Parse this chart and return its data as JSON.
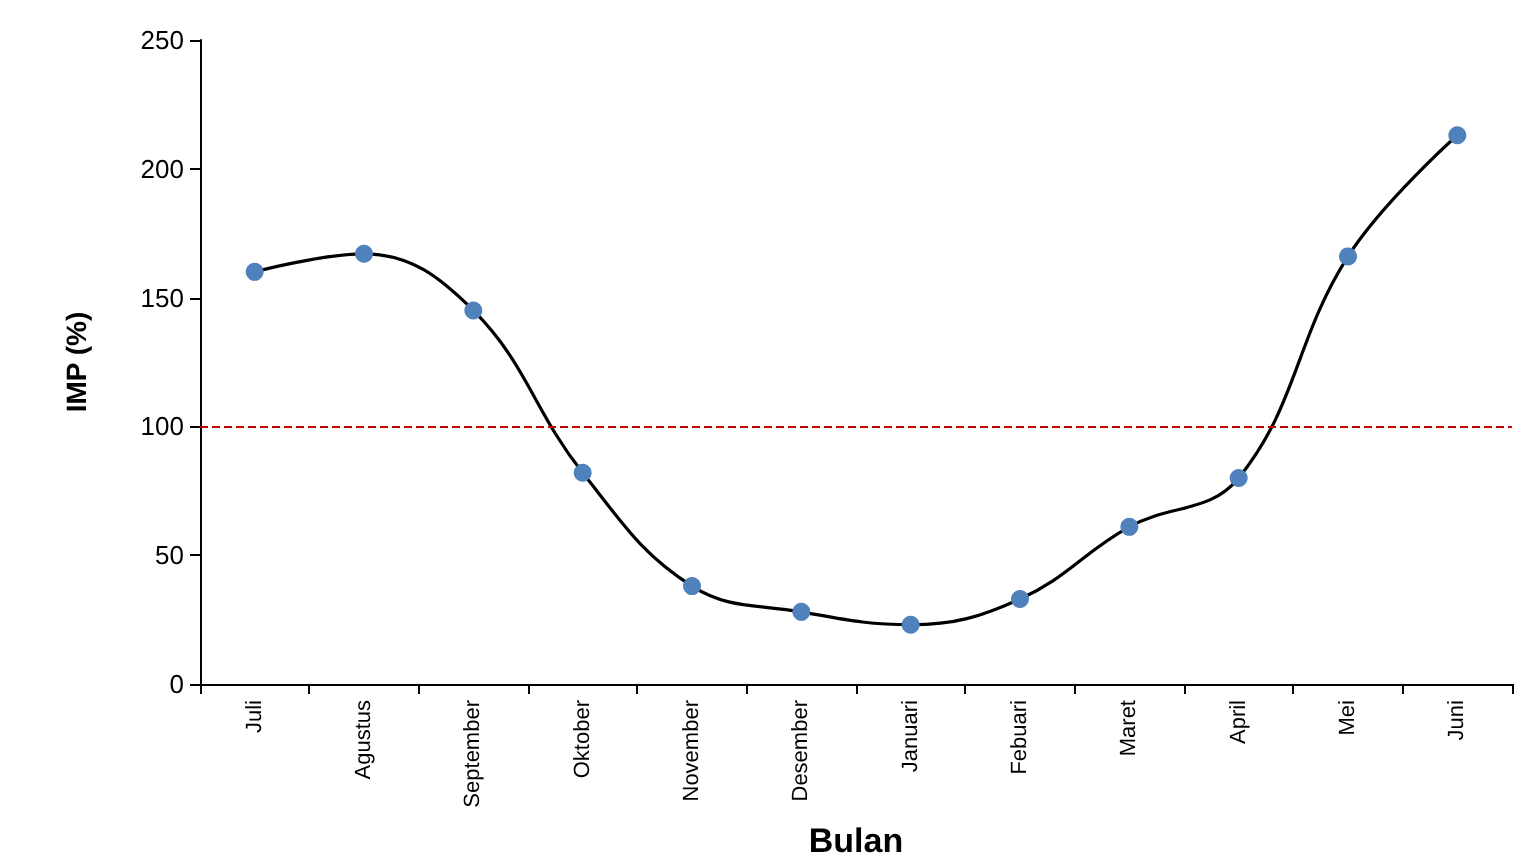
{
  "chart_data": {
    "type": "line",
    "xlabel": "Bulan",
    "ylabel": "IMP (%)",
    "categories": [
      "Juli",
      "Agustus",
      "September",
      "Oktober",
      "November",
      "Desember",
      "Januari",
      "Febuari",
      "Maret",
      "April",
      "Mei",
      "Juni"
    ],
    "series": [
      {
        "color": "#4f81bd",
        "values": [
          160,
          167,
          145,
          82,
          38,
          28,
          23,
          33,
          61,
          80,
          166,
          213
        ]
      }
    ],
    "ylim": [
      0,
      250
    ],
    "yticks": [
      0,
      50,
      100,
      150,
      200,
      250
    ],
    "grid": false,
    "marker": "circle",
    "line_style": "solid",
    "ref_lines": [
      {
        "axis": "y",
        "value": 100,
        "color": "#c00000",
        "line_style": "dashed"
      }
    ]
  }
}
